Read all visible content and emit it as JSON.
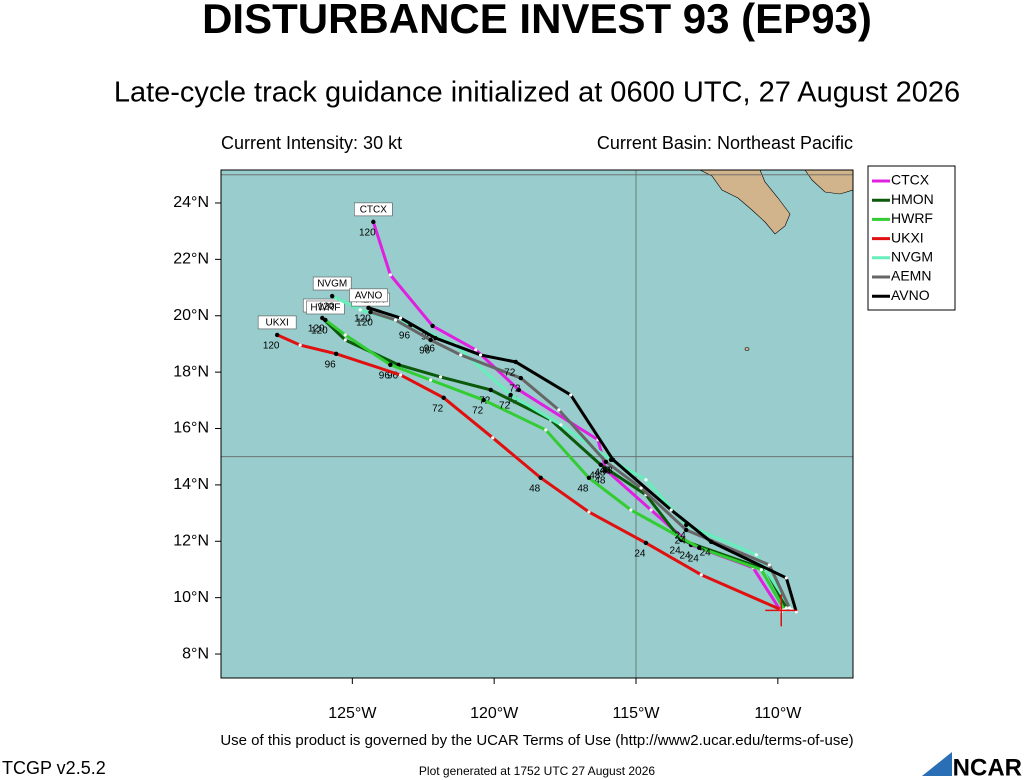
{
  "chart_data": {
    "type": "track",
    "title": "DISTURBANCE INVEST 93 (EP93)",
    "subtitle": "Late-cycle track guidance initialized at 0600 UTC, 27 August 2026",
    "intensity": "Current Intensity: 30 kt",
    "basin": "Current Basin: Northeast Pacific",
    "terms": "Use of this product is governed by the UCAR Terms of Use (http://www2.ucar.edu/terms-of-use)",
    "version": "TCGP v2.5.2",
    "generated": "Plot generated at 1752 UTC   27 August 2026",
    "logo": "NCAR",
    "xlim": [
      -129.63,
      -107.35
    ],
    "ylim": [
      7.15,
      25.17
    ],
    "xticks": [
      {
        "value": -125,
        "label": "125°W"
      },
      {
        "value": -120,
        "label": "120°W"
      },
      {
        "value": -115,
        "label": "115°W"
      },
      {
        "value": -110,
        "label": "110°W"
      }
    ],
    "yticks": [
      {
        "value": 8,
        "label": "8°N"
      },
      {
        "value": 10,
        "label": "10°N"
      },
      {
        "value": 12,
        "label": "12°N"
      },
      {
        "value": 14,
        "label": "14°N"
      },
      {
        "value": 16,
        "label": "16°N"
      },
      {
        "value": 18,
        "label": "18°N"
      },
      {
        "value": 20,
        "label": "20°N"
      },
      {
        "value": 22,
        "label": "22°N"
      },
      {
        "value": 24,
        "label": "24°N"
      }
    ],
    "grid_x": [
      -115
    ],
    "grid_y": [
      15,
      25
    ],
    "current_position": {
      "x": -109.88,
      "y": 9.55
    },
    "taus": [
      0,
      12,
      24,
      36,
      48,
      60,
      72,
      84,
      96,
      108,
      120
    ],
    "labeled_taus": [
      24,
      48,
      72,
      96,
      120
    ],
    "series": [
      {
        "name": "CTCX",
        "color": "#e020e0",
        "x": [
          -109.88,
          -110.87,
          -113.06,
          -114.47,
          -116.06,
          -116.34,
          -119.13,
          -120.65,
          -122.17,
          -123.66,
          -124.26
        ],
        "values": [
          9.5,
          11.06,
          11.87,
          13.11,
          14.53,
          15.6,
          17.37,
          18.79,
          19.64,
          21.45,
          23.33
        ]
      },
      {
        "name": "HMON",
        "color": "#0a5a0a",
        "x": [
          -109.7,
          -110.41,
          -113.41,
          -114.65,
          -116.24,
          -118.0,
          -120.12,
          -121.89,
          -123.37,
          -125.25,
          -126.06
        ],
        "values": [
          9.64,
          10.99,
          12.05,
          13.65,
          14.71,
          16.3,
          17.37,
          17.83,
          18.26,
          19.14,
          19.92
        ]
      },
      {
        "name": "HWRF",
        "color": "#33cc33",
        "x": [
          -109.77,
          -110.58,
          -112.77,
          -115.18,
          -116.66,
          -118.18,
          -120.37,
          -122.24,
          -123.66,
          -125.25,
          -125.95
        ],
        "values": [
          9.57,
          10.99,
          11.77,
          13.11,
          14.25,
          15.95,
          17.01,
          17.72,
          18.26,
          19.32,
          19.85
        ]
      },
      {
        "name": "UKXI",
        "color": "#e01010",
        "x": [
          -109.88,
          -112.7,
          -114.65,
          -116.66,
          -118.36,
          -120.05,
          -121.78,
          -123.3,
          -125.57,
          -126.84,
          -127.65
        ],
        "values": [
          9.57,
          10.81,
          11.94,
          13.04,
          14.25,
          15.67,
          17.09,
          17.9,
          18.65,
          18.96,
          19.32
        ]
      },
      {
        "name": "NVGM",
        "color": "#66eebb",
        "x": [
          -109.52,
          -110.76,
          -113.23,
          -114.65,
          -115.88,
          -117.65,
          -119.42,
          -121.36,
          -122.95,
          -124.72,
          -125.71
        ],
        "values": [
          9.57,
          11.52,
          12.58,
          14.18,
          14.89,
          16.13,
          17.19,
          18.96,
          19.67,
          20.21,
          20.7
        ]
      },
      {
        "name": "AEMN",
        "color": "#666666",
        "x": [
          -109.59,
          -110.3,
          -113.23,
          -114.82,
          -116.06,
          -117.72,
          -119.06,
          -121.18,
          -122.24,
          -123.48,
          -124.36
        ],
        "values": [
          9.64,
          11.16,
          12.4,
          13.89,
          14.82,
          16.66,
          17.79,
          18.61,
          19.14,
          19.85,
          20.13
        ]
      },
      {
        "name": "AVNO",
        "color": "#000000",
        "x": [
          -109.35,
          -109.7,
          -112.35,
          -113.76,
          -115.81,
          -117.3,
          -119.24,
          -120.48,
          -122.07,
          -123.3,
          -124.43
        ],
        "values": [
          9.5,
          10.7,
          11.98,
          13.11,
          14.89,
          17.19,
          18.36,
          18.61,
          19.21,
          19.92,
          20.28
        ]
      }
    ]
  }
}
